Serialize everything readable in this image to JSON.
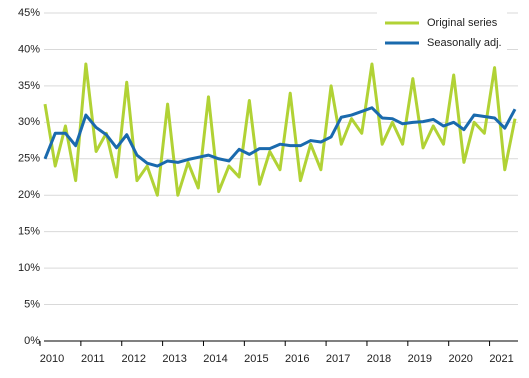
{
  "chart_data": {
    "type": "line",
    "categories": [
      "2010",
      null,
      null,
      null,
      "2011",
      null,
      null,
      null,
      "2012",
      null,
      null,
      null,
      "2013",
      null,
      null,
      null,
      "2014",
      null,
      null,
      null,
      "2015",
      null,
      null,
      null,
      "2016",
      null,
      null,
      null,
      "2017",
      null,
      null,
      null,
      "2018",
      null,
      null,
      null,
      "2019",
      null,
      null,
      null,
      "2020",
      null,
      null,
      null,
      "2021",
      null,
      null
    ],
    "series": [
      {
        "name": "Original series",
        "color": "#b1d235",
        "values": [
          32.5,
          24,
          29.5,
          22,
          38,
          26,
          28.5,
          22.5,
          35.5,
          22,
          24,
          20,
          32.5,
          20,
          24.5,
          21,
          33.5,
          20.5,
          24,
          22.5,
          33,
          21.5,
          26,
          23.5,
          34,
          22,
          27,
          23.5,
          35,
          27,
          30.5,
          28.5,
          38,
          27,
          30,
          27,
          36,
          26.5,
          29.5,
          27,
          36.5,
          24.5,
          30,
          28.5,
          37.5,
          23.5,
          30.5
        ]
      },
      {
        "name": "Seasonally adj.",
        "color": "#1a6aad",
        "values": [
          25,
          28.5,
          28.5,
          26.8,
          31,
          29.3,
          28.3,
          26.5,
          28.3,
          25.5,
          24.4,
          24,
          24.7,
          24.5,
          24.9,
          25.2,
          25.5,
          25,
          24.7,
          26.3,
          25.6,
          26.4,
          26.4,
          27,
          26.8,
          26.8,
          27.5,
          27.3,
          28,
          30.7,
          31,
          31.5,
          32,
          30.6,
          30.5,
          29.8,
          30,
          30.1,
          30.4,
          29.5,
          30,
          29,
          31,
          30.8,
          30.6,
          29.2,
          31.8
        ]
      }
    ],
    "ylim": [
      0,
      45
    ],
    "yticks": [
      {
        "value": 0,
        "label": "0%"
      },
      {
        "value": 5,
        "label": "5%"
      },
      {
        "value": 10,
        "label": "10%"
      },
      {
        "value": 15,
        "label": "15%"
      },
      {
        "value": 20,
        "label": "20%"
      },
      {
        "value": 25,
        "label": "25%"
      },
      {
        "value": 30,
        "label": "30%"
      },
      {
        "value": 35,
        "label": "35%"
      },
      {
        "value": 40,
        "label": "40%"
      },
      {
        "value": 45,
        "label": "45%"
      }
    ],
    "grid": true,
    "legend": "upper right"
  }
}
